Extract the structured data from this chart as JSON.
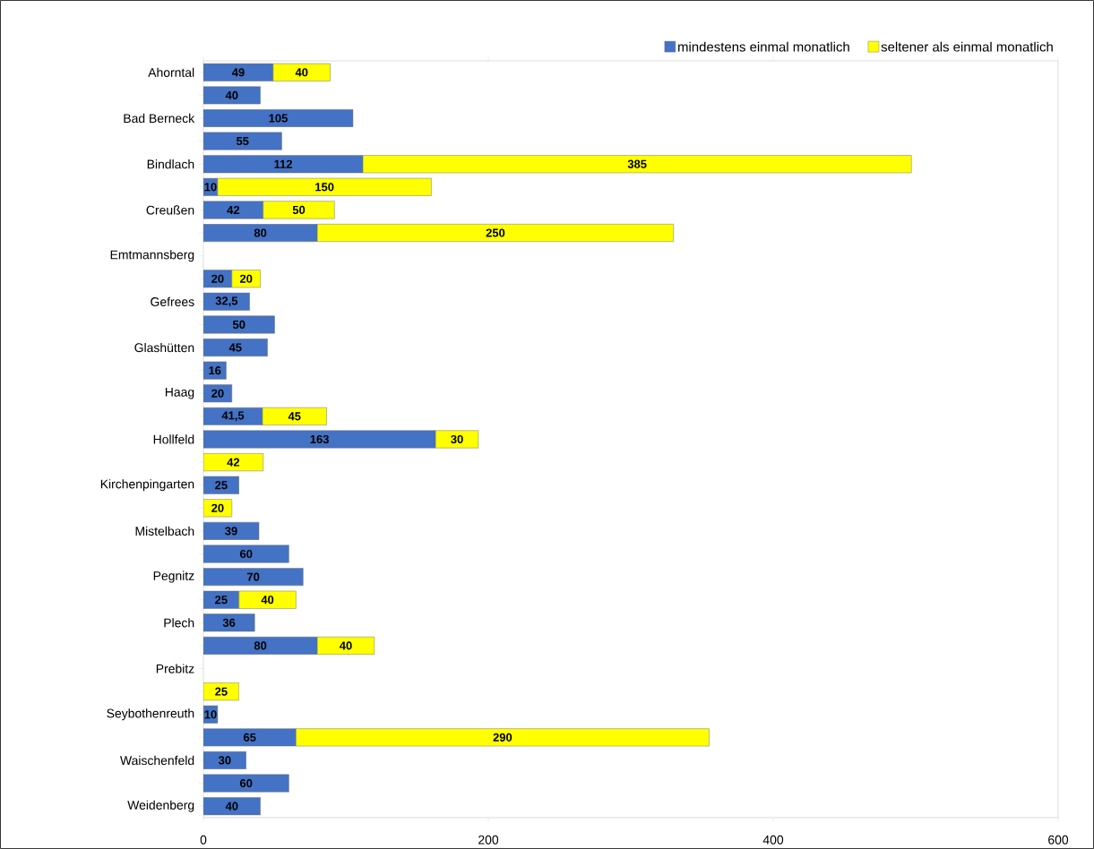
{
  "chart_data": {
    "type": "bar",
    "orientation": "horizontal",
    "stacked": true,
    "categories": [
      "Ahorntal",
      null,
      "Bad Berneck",
      null,
      "Bindlach",
      null,
      "Creußen",
      null,
      "Emtmannsberg",
      null,
      "Gefrees",
      null,
      "Glashütten",
      null,
      "Haag",
      null,
      "Hollfeld",
      null,
      "Kirchenpingarten",
      null,
      "Mistelbach",
      null,
      "Pegnitz",
      null,
      "Plech",
      null,
      "Prebitz",
      null,
      "Seybothenreuth",
      null,
      "Waischenfeld",
      null,
      "Weidenberg"
    ],
    "series": [
      {
        "name": "mindestens einmal monatlich",
        "color": "#4472c4",
        "values": [
          49,
          40,
          105,
          55,
          112,
          10,
          42,
          80,
          null,
          20,
          32.5,
          50,
          45,
          16,
          20,
          41.5,
          163,
          null,
          25,
          null,
          39,
          60,
          70,
          25,
          36,
          80,
          null,
          null,
          10,
          65,
          30,
          60,
          40
        ],
        "value_labels": [
          "49",
          "40",
          "105",
          "55",
          "112",
          "10",
          "42",
          "80",
          null,
          "20",
          "32,5",
          "50",
          "45",
          "16",
          "20",
          "41,5",
          "163",
          null,
          "25",
          null,
          "39",
          "60",
          "70",
          "25",
          "36",
          "80",
          null,
          null,
          "10",
          "65",
          "30",
          "60",
          "40"
        ]
      },
      {
        "name": "seltener als einmal monatlich",
        "color": "#ffff00",
        "values": [
          40,
          null,
          null,
          null,
          385,
          150,
          50,
          250,
          null,
          20,
          null,
          null,
          null,
          null,
          null,
          45,
          30,
          42,
          null,
          20,
          null,
          null,
          null,
          40,
          null,
          40,
          null,
          25,
          null,
          290,
          null,
          null,
          null
        ],
        "value_labels": [
          "40",
          null,
          null,
          null,
          "385",
          "150",
          "50",
          "250",
          null,
          "20",
          null,
          null,
          null,
          null,
          null,
          "45",
          "30",
          "42",
          null,
          "20",
          null,
          null,
          null,
          "40",
          null,
          "40",
          null,
          "25",
          null,
          "290",
          null,
          null,
          null
        ]
      }
    ],
    "xlim": [
      0,
      600
    ],
    "xticks": [
      0,
      200,
      400,
      600
    ],
    "legend": "top right",
    "grid": false
  }
}
